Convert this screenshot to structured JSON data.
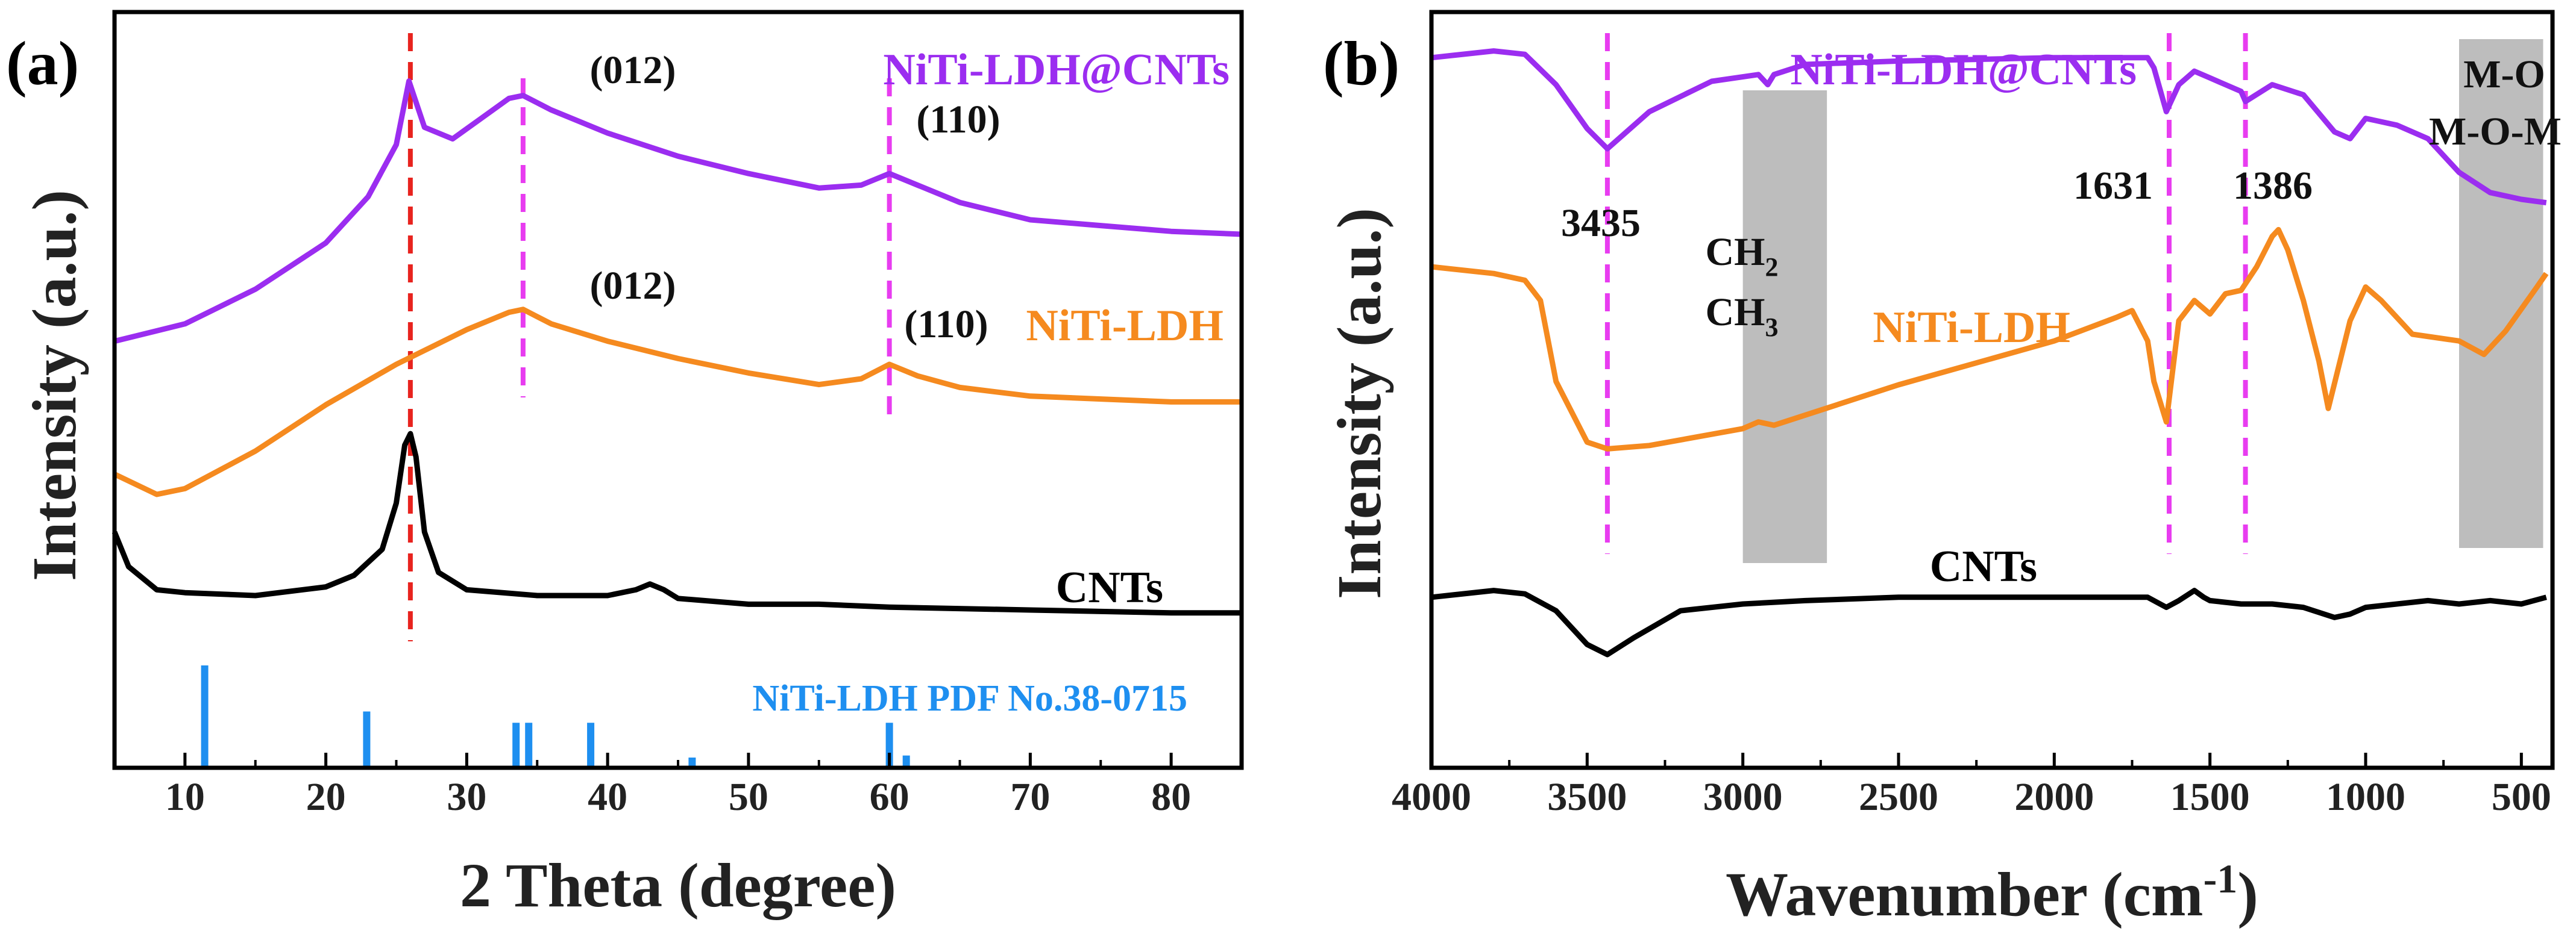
{
  "colors": {
    "purple": "#9b2df0",
    "orange": "#f58a1f",
    "black": "#000000",
    "blue": "#1e8ff0",
    "magenta_dash": "#e83cf0",
    "red_dash": "#e8231e",
    "gray_band": "#bdbdbd"
  },
  "chart_data": [
    {
      "panel_label": "(a)",
      "type": "line",
      "title": "",
      "xlabel": "2 Theta (degree)",
      "ylabel": "Intensity (a.u.)",
      "xlim": [
        5,
        85
      ],
      "xticks": [
        10,
        20,
        30,
        40,
        50,
        60,
        70,
        80
      ],
      "series": [
        {
          "name": "NiTi-LDH@CNTs",
          "color_key": "purple",
          "x": [
            5,
            10,
            15,
            20,
            23,
            25,
            25.9,
            27,
            29,
            31,
            33,
            34,
            36,
            40,
            45,
            50,
            55,
            58,
            60,
            62,
            65,
            70,
            75,
            80,
            85
          ],
          "y": [
            1.08,
            1.14,
            1.26,
            1.42,
            1.58,
            1.76,
            1.98,
            1.82,
            1.78,
            1.85,
            1.92,
            1.93,
            1.88,
            1.8,
            1.72,
            1.66,
            1.61,
            1.62,
            1.66,
            1.62,
            1.56,
            1.5,
            1.48,
            1.46,
            1.45
          ]
        },
        {
          "name": "NiTi-LDH",
          "color_key": "orange",
          "x": [
            5,
            8,
            10,
            15,
            20,
            25,
            30,
            33,
            34,
            36,
            40,
            45,
            50,
            55,
            58,
            60,
            62,
            65,
            70,
            75,
            80,
            85
          ],
          "y": [
            0.62,
            0.55,
            0.57,
            0.7,
            0.86,
            1.0,
            1.12,
            1.18,
            1.19,
            1.14,
            1.08,
            1.02,
            0.97,
            0.93,
            0.95,
            1.0,
            0.96,
            0.92,
            0.89,
            0.88,
            0.87,
            0.87
          ]
        },
        {
          "name": "CNTs",
          "color_key": "black",
          "x": [
            5,
            6,
            8,
            10,
            15,
            20,
            22,
            24,
            25,
            25.6,
            26,
            26.4,
            27,
            28,
            30,
            35,
            40,
            42,
            43,
            44,
            45,
            50,
            55,
            60,
            70,
            80,
            85
          ],
          "y": [
            0.42,
            0.3,
            0.22,
            0.21,
            0.2,
            0.23,
            0.27,
            0.36,
            0.52,
            0.72,
            0.76,
            0.68,
            0.42,
            0.28,
            0.22,
            0.2,
            0.2,
            0.22,
            0.24,
            0.22,
            0.19,
            0.17,
            0.17,
            0.16,
            0.15,
            0.14,
            0.14
          ]
        }
      ],
      "reference_pattern": {
        "name": "NiTi-LDH PDF No.38-0715",
        "color_key": "blue",
        "positions": [
          11.4,
          22.9,
          33.5,
          34.4,
          38.8,
          46.0,
          60.0,
          61.2
        ],
        "intensities": [
          1.0,
          0.55,
          0.44,
          0.44,
          0.44,
          0.1,
          0.44,
          0.12
        ]
      },
      "reference_lines": [
        {
          "x": 26.0,
          "color_key": "red_dash"
        },
        {
          "x": 34.0,
          "color_key": "magenta_dash"
        },
        {
          "x": 60.0,
          "color_key": "magenta_dash"
        }
      ],
      "labels": {
        "series_purple": "NiTi-LDH@CNTs",
        "series_orange": "NiTi-LDH",
        "series_black": "CNTs",
        "reference": "NiTi-LDH PDF No.38-0715",
        "peak_012_top": "(012)",
        "peak_110_top": "(110)",
        "peak_012_mid": "(012)",
        "peak_110_mid": "(110)"
      }
    },
    {
      "panel_label": "(b)",
      "type": "line",
      "title": "",
      "xlabel": "Wavenumber (cm",
      "xlabel_superscript": "-1",
      "xlabel_suffix": ")",
      "ylabel": "Intensity (a.u.)",
      "xlim": [
        4000,
        400
      ],
      "xticks": [
        4000,
        3500,
        3000,
        2500,
        2000,
        1500,
        1000,
        500
      ],
      "series": [
        {
          "name": "NiTi-LDH@CNTs",
          "color_key": "purple",
          "x": [
            4000,
            3800,
            3700,
            3600,
            3500,
            3435,
            3300,
            3100,
            2950,
            2920,
            2900,
            2800,
            2500,
            2000,
            1700,
            1680,
            1640,
            1600,
            1550,
            1500,
            1400,
            1386,
            1300,
            1200,
            1100,
            1050,
            1000,
            900,
            800,
            700,
            600,
            500,
            420
          ],
          "y": [
            1.82,
            1.84,
            1.83,
            1.74,
            1.61,
            1.55,
            1.66,
            1.75,
            1.77,
            1.74,
            1.77,
            1.8,
            1.81,
            1.82,
            1.82,
            1.79,
            1.66,
            1.74,
            1.78,
            1.76,
            1.72,
            1.69,
            1.74,
            1.71,
            1.6,
            1.58,
            1.64,
            1.62,
            1.58,
            1.48,
            1.42,
            1.4,
            1.39
          ]
        },
        {
          "name": "NiTi-LDH",
          "color_key": "orange",
          "x": [
            4000,
            3800,
            3700,
            3650,
            3600,
            3500,
            3435,
            3300,
            3000,
            2950,
            2900,
            2500,
            2000,
            1800,
            1750,
            1700,
            1680,
            1640,
            1600,
            1550,
            1500,
            1450,
            1400,
            1350,
            1300,
            1280,
            1250,
            1200,
            1150,
            1120,
            1050,
            1000,
            950,
            850,
            700,
            620,
            550,
            450,
            420
          ],
          "y": [
            1.2,
            1.18,
            1.16,
            1.1,
            0.86,
            0.68,
            0.66,
            0.67,
            0.72,
            0.74,
            0.73,
            0.85,
            0.98,
            1.05,
            1.07,
            0.98,
            0.86,
            0.74,
            1.04,
            1.1,
            1.06,
            1.12,
            1.13,
            1.2,
            1.29,
            1.31,
            1.25,
            1.1,
            0.92,
            0.78,
            1.04,
            1.14,
            1.1,
            1.0,
            0.98,
            0.94,
            1.01,
            1.14,
            1.18
          ]
        },
        {
          "name": "CNTs",
          "color_key": "black",
          "x": [
            4000,
            3800,
            3700,
            3600,
            3500,
            3435,
            3350,
            3200,
            3000,
            2800,
            2500,
            2000,
            1700,
            1640,
            1600,
            1550,
            1520,
            1500,
            1400,
            1300,
            1200,
            1100,
            1050,
            1000,
            900,
            800,
            700,
            600,
            500,
            420
          ],
          "y": [
            0.22,
            0.24,
            0.23,
            0.18,
            0.08,
            0.05,
            0.1,
            0.18,
            0.2,
            0.21,
            0.22,
            0.22,
            0.22,
            0.19,
            0.21,
            0.24,
            0.22,
            0.21,
            0.2,
            0.2,
            0.19,
            0.16,
            0.17,
            0.19,
            0.2,
            0.21,
            0.2,
            0.21,
            0.2,
            0.22
          ]
        }
      ],
      "reference_lines": [
        {
          "x": 3435,
          "color_key": "magenta_dash"
        },
        {
          "x": 1631,
          "color_key": "magenta_dash"
        },
        {
          "x": 1386,
          "color_key": "magenta_dash"
        }
      ],
      "shaded_regions": [
        {
          "x": [
            3000,
            2730
          ],
          "label_line1": "CH",
          "label_sub1": "2",
          "label_line2": "CH",
          "label_sub2": "3"
        },
        {
          "x": [
            700,
            430
          ],
          "label_line1": "M-O",
          "label_line2": "M-O-M"
        }
      ],
      "labels": {
        "series_purple": "NiTi-LDH@CNTs",
        "series_orange": "NiTi-LDH",
        "series_black": "CNTs",
        "peak_3435": "3435",
        "peak_1631": "1631",
        "peak_1386": "1386"
      }
    }
  ]
}
